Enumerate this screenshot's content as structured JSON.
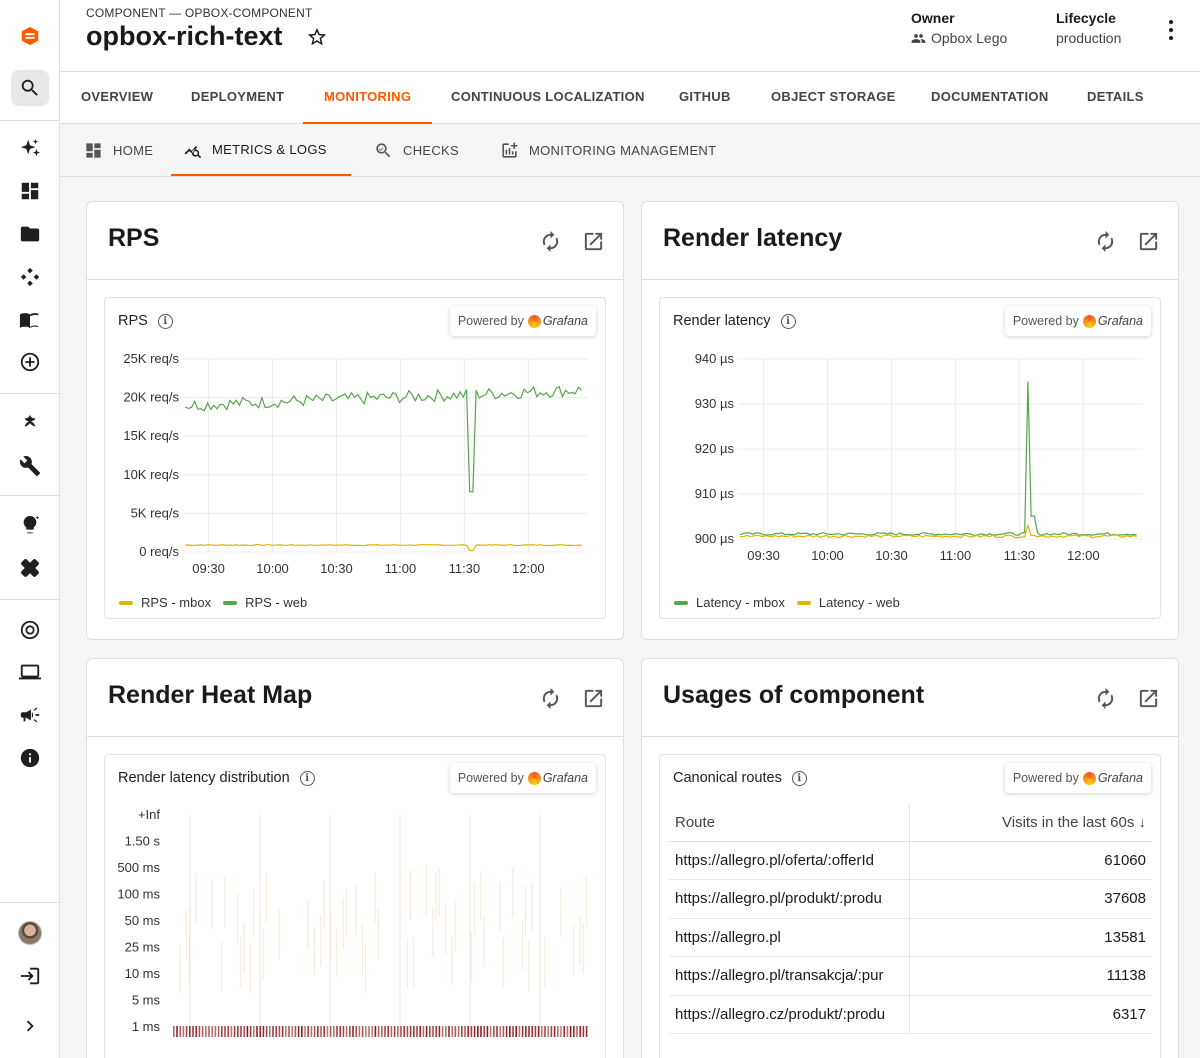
{
  "header": {
    "kicker": "COMPONENT — OPBOX-COMPONENT",
    "title": "opbox-rich-text",
    "owner_label": "Owner",
    "owner_value": "Opbox Lego",
    "lifecycle_label": "Lifecycle",
    "lifecycle_value": "production"
  },
  "tabs": [
    {
      "label": "OVERVIEW"
    },
    {
      "label": "DEPLOYMENT"
    },
    {
      "label": "MONITORING",
      "active": true
    },
    {
      "label": "CONTINUOUS LOCALIZATION"
    },
    {
      "label": "GITHUB"
    },
    {
      "label": "OBJECT STORAGE"
    },
    {
      "label": "DOCUMENTATION"
    },
    {
      "label": "DETAILS"
    }
  ],
  "subtabs": [
    {
      "label": "HOME"
    },
    {
      "label": "METRICS & LOGS",
      "active": true
    },
    {
      "label": "CHECKS"
    },
    {
      "label": "MONITORING MANAGEMENT"
    }
  ],
  "powered_by": {
    "text": "Powered by",
    "brand": "Grafana"
  },
  "cards": {
    "rps": {
      "title": "RPS",
      "panel_title": "RPS"
    },
    "latency": {
      "title": "Render latency",
      "panel_title": "Render latency"
    },
    "heatmap": {
      "title": "Render Heat Map",
      "panel_title": "Render latency distribution"
    },
    "usages": {
      "title": "Usages of component",
      "panel_title": "Canonical routes"
    }
  },
  "colors": {
    "accent": "#ff5a00",
    "green": "#56a64b",
    "yellow": "#e0b400",
    "heat": "#8b1a1a"
  },
  "chart_data": [
    {
      "type": "line",
      "title": "RPS",
      "x": [
        "09:30",
        "10:00",
        "10:30",
        "11:00",
        "11:30",
        "12:00"
      ],
      "yticks": [
        "0 req/s",
        "5K req/s",
        "10K req/s",
        "15K req/s",
        "20K req/s",
        "25K req/s"
      ],
      "ylim": [
        0,
        25000
      ],
      "series": [
        {
          "name": "RPS - mbox",
          "color": "#e0b400",
          "level": 900
        },
        {
          "name": "RPS - web",
          "color": "#56a64b",
          "level_start": 19000,
          "level_end": 21000,
          "dip_at": "11:33",
          "dip_value": 7800
        }
      ],
      "legend": "bottom-left"
    },
    {
      "type": "line",
      "title": "Render latency",
      "x": [
        "09:30",
        "10:00",
        "10:30",
        "11:00",
        "11:30",
        "12:00"
      ],
      "yticks": [
        "900 µs",
        "910 µs",
        "920 µs",
        "930 µs",
        "940 µs"
      ],
      "ylim": [
        900,
        940
      ],
      "series": [
        {
          "name": "Latency - mbox",
          "color": "#56a64b",
          "level": 901,
          "spike_at": "11:34",
          "spike_value": 935
        },
        {
          "name": "Latency - web",
          "color": "#e0b400",
          "level": 900.5,
          "spike_at": "11:34",
          "spike_value": 903
        }
      ],
      "legend": "bottom-left"
    },
    {
      "type": "heatmap",
      "title": "Render latency distribution",
      "yticks": [
        "1 ms",
        "5 ms",
        "10 ms",
        "25 ms",
        "50 ms",
        "100 ms",
        "500 ms",
        "1.50 s",
        "+Inf"
      ],
      "dominant_bucket": "1 ms"
    }
  ],
  "routes": {
    "col_route": "Route",
    "col_visits": "Visits in the last 60s",
    "rows": [
      {
        "route": "https://allegro.pl/oferta/:offerId",
        "visits": "61060"
      },
      {
        "route": "https://allegro.pl/produkt/:produ",
        "visits": "37608"
      },
      {
        "route": "https://allegro.pl",
        "visits": "13581"
      },
      {
        "route": "https://allegro.pl/transakcja/:pur",
        "visits": "11138"
      },
      {
        "route": "https://allegro.cz/produkt/:produ",
        "visits": "6317"
      }
    ]
  }
}
